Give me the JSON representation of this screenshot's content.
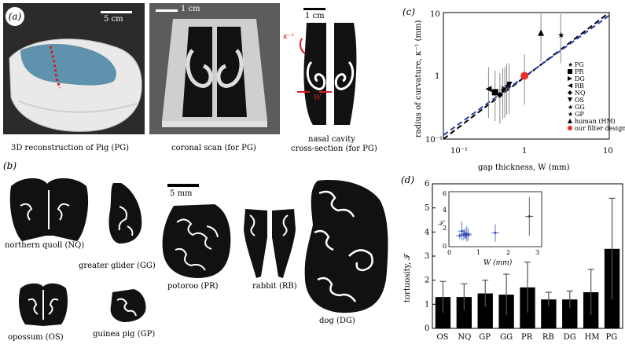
{
  "panel_a": {
    "label": "(a)",
    "scale_pig": "5 cm",
    "scale_ct": "1 cm",
    "scale_nasal": "1 cm",
    "cap_3d": "3D reconstruction of Pig (PG)",
    "cap_coronal": "coronal scan (for PG)",
    "cap_nasal_1": "nasal cavity",
    "cap_nasal_2": "cross-section (for PG)",
    "kappa": "κ⁻¹",
    "w": "W"
  },
  "panel_b": {
    "label": "(b)",
    "scale": "5 mm",
    "cap_nq": "northern quoll (NQ)",
    "cap_gg": "greater glider (GG)",
    "cap_pr": "potoroo (PR)",
    "cap_rb": "rabbit (RB)",
    "cap_dg": "dog (DG)",
    "cap_os": "opossum (OS)",
    "cap_gp": "guinea pig (GP)"
  },
  "panel_c": {
    "label": "(c)",
    "ylabel": "radius of curvature, κ⁻¹ (mm)",
    "xlabel": "gap thickness, W (mm)",
    "xticks": [
      "10⁻¹",
      "1",
      "10"
    ],
    "yticks": [
      "10⁻¹",
      "1",
      "10"
    ],
    "legend": [
      "PG",
      "PR",
      "DG",
      "RB",
      "NQ",
      "OS",
      "GG",
      "GP",
      "human (HM)",
      "our filter design"
    ],
    "colors": {
      "blue": "#2b3fa8",
      "red": "#e8302b"
    }
  },
  "panel_d": {
    "label": "(d)",
    "ylabel": "tortuosity, 𝒯",
    "yticks": [
      "0",
      "1",
      "2",
      "3",
      "4",
      "5",
      "6"
    ],
    "inset_ylabel": "𝒯",
    "inset_xlabel": "W (mm)",
    "inset_xticks": [
      "0",
      "1",
      "2",
      "3"
    ],
    "inset_yticks": [
      "0",
      "2",
      "4",
      "6"
    ]
  },
  "chart_data": [
    {
      "type": "scatter",
      "xlabel": "gap thickness, W (mm)",
      "ylabel": "radius of curvature, κ⁻¹ (mm)",
      "xscale": "log",
      "yscale": "log",
      "xlim": [
        0.1,
        10
      ],
      "ylim": [
        0.1,
        10
      ],
      "legend_position": "right",
      "series": [
        {
          "name": "PG",
          "x": [
            2.6
          ],
          "y": [
            4.5
          ],
          "marker": "star"
        },
        {
          "name": "PR",
          "x": [
            0.42
          ],
          "y": [
            0.55
          ],
          "marker": "square"
        },
        {
          "name": "DG",
          "x": [
            0.55
          ],
          "y": [
            0.62
          ],
          "marker": "triangle-right"
        },
        {
          "name": "RB",
          "x": [
            0.35
          ],
          "y": [
            0.62
          ],
          "marker": "triangle-left"
        },
        {
          "name": "NQ",
          "x": [
            0.48
          ],
          "y": [
            0.5
          ],
          "marker": "diamond"
        },
        {
          "name": "OS",
          "x": [
            0.62
          ],
          "y": [
            0.72
          ],
          "marker": "triangle-down"
        },
        {
          "name": "GG",
          "x": [
            0.58
          ],
          "y": [
            0.7
          ],
          "marker": "star"
        },
        {
          "name": "GP",
          "x": [
            0.52
          ],
          "y": [
            0.6
          ],
          "marker": "hexagram"
        },
        {
          "name": "human (HM)",
          "x": [
            1.5
          ],
          "y": [
            4.8
          ],
          "marker": "triangle-up"
        },
        {
          "name": "our filter design",
          "x": [
            0.95
          ],
          "y": [
            1.0
          ],
          "marker": "circle"
        }
      ]
    },
    {
      "type": "bar",
      "ylabel": "tortuosity, 𝒯",
      "categories": [
        "OS",
        "NQ",
        "GP",
        "GG",
        "PR",
        "RB",
        "DG",
        "HM",
        "PG"
      ],
      "values": [
        1.3,
        1.3,
        1.45,
        1.4,
        1.7,
        1.2,
        1.2,
        1.5,
        3.3
      ],
      "errors": [
        0.65,
        0.55,
        0.55,
        0.85,
        1.05,
        0.3,
        0.35,
        0.95,
        2.1
      ],
      "ylim": [
        0,
        6
      ]
    }
  ]
}
